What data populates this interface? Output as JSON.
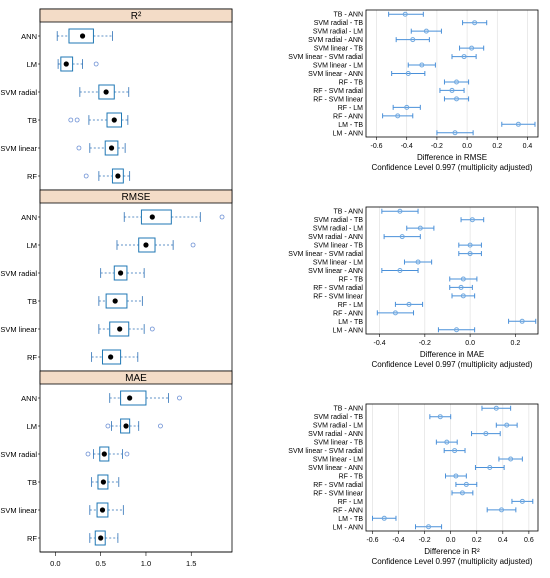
{
  "chart_data": [
    {
      "type": "box",
      "title": "R²",
      "categories": [
        "ANN",
        "LM",
        "SVM radial",
        "TB",
        "SVM linear",
        "RF"
      ],
      "boxes": [
        {
          "q1": 0.15,
          "median": 0.3,
          "q3": 0.42,
          "whisker_low": 0.02,
          "whisker_high": 0.63,
          "outliers": []
        },
        {
          "q1": 0.06,
          "median": 0.12,
          "q3": 0.19,
          "whisker_low": 0.03,
          "whisker_high": 0.3,
          "outliers": [
            0.45
          ]
        },
        {
          "q1": 0.48,
          "median": 0.56,
          "q3": 0.65,
          "whisker_low": 0.27,
          "whisker_high": 0.81,
          "outliers": []
        },
        {
          "q1": 0.57,
          "median": 0.65,
          "q3": 0.73,
          "whisker_low": 0.37,
          "whisker_high": 0.8,
          "outliers": [
            0.17,
            0.24
          ]
        },
        {
          "q1": 0.55,
          "median": 0.62,
          "q3": 0.69,
          "whisker_low": 0.38,
          "whisker_high": 0.77,
          "outliers": [
            0.26
          ]
        },
        {
          "q1": 0.63,
          "median": 0.69,
          "q3": 0.75,
          "whisker_low": 0.48,
          "whisker_high": 0.82,
          "outliers": [
            0.34
          ]
        }
      ]
    },
    {
      "type": "box",
      "title": "RMSE",
      "categories": [
        "ANN",
        "LM",
        "SVM radial",
        "TB",
        "SVM linear",
        "RF"
      ],
      "boxes": [
        {
          "q1": 0.95,
          "median": 1.07,
          "q3": 1.28,
          "whisker_low": 0.76,
          "whisker_high": 1.6,
          "outliers": [
            1.84
          ]
        },
        {
          "q1": 0.92,
          "median": 1.0,
          "q3": 1.1,
          "whisker_low": 0.68,
          "whisker_high": 1.3,
          "outliers": [
            1.52
          ]
        },
        {
          "q1": 0.65,
          "median": 0.72,
          "q3": 0.79,
          "whisker_low": 0.5,
          "whisker_high": 0.98,
          "outliers": []
        },
        {
          "q1": 0.56,
          "median": 0.66,
          "q3": 0.79,
          "whisker_low": 0.48,
          "whisker_high": 0.96,
          "outliers": []
        },
        {
          "q1": 0.6,
          "median": 0.71,
          "q3": 0.81,
          "whisker_low": 0.48,
          "whisker_high": 0.98,
          "outliers": [
            1.07
          ]
        },
        {
          "q1": 0.52,
          "median": 0.61,
          "q3": 0.72,
          "whisker_low": 0.4,
          "whisker_high": 0.91,
          "outliers": []
        }
      ]
    },
    {
      "type": "box",
      "title": "MAE",
      "categories": [
        "ANN",
        "LM",
        "SVM radial",
        "TB",
        "SVM linear",
        "RF"
      ],
      "boxes": [
        {
          "q1": 0.72,
          "median": 0.82,
          "q3": 1.0,
          "whisker_low": 0.6,
          "whisker_high": 1.25,
          "outliers": [
            1.37
          ]
        },
        {
          "q1": 0.72,
          "median": 0.78,
          "q3": 0.82,
          "whisker_low": 0.62,
          "whisker_high": 0.92,
          "outliers": [
            0.58,
            1.16
          ]
        },
        {
          "q1": 0.49,
          "median": 0.54,
          "q3": 0.59,
          "whisker_low": 0.42,
          "whisker_high": 0.74,
          "outliers": [
            0.36,
            0.79
          ]
        },
        {
          "q1": 0.47,
          "median": 0.53,
          "q3": 0.58,
          "whisker_low": 0.4,
          "whisker_high": 0.7,
          "outliers": []
        },
        {
          "q1": 0.46,
          "median": 0.52,
          "q3": 0.58,
          "whisker_low": 0.38,
          "whisker_high": 0.75,
          "outliers": []
        },
        {
          "q1": 0.44,
          "median": 0.5,
          "q3": 0.55,
          "whisker_low": 0.38,
          "whisker_high": 0.69,
          "outliers": []
        }
      ]
    },
    {
      "type": "errorbar",
      "xlabel": "Difference in RMSE",
      "subtitle": "Confidence Level 0.997  (multiplicity adjusted)",
      "xlim": [
        -0.67,
        0.47
      ],
      "xticks": [
        -0.6,
        -0.4,
        -0.2,
        0.0,
        0.2,
        0.4
      ],
      "categories": [
        "TB - ANN",
        "SVM radial - TB",
        "SVM radial - LM",
        "SVM radial - ANN",
        "SVM linear - TB",
        "SVM linear - SVM radial",
        "SVM linear - LM",
        "SVM linear - ANN",
        "RF - TB",
        "RF - SVM radial",
        "RF - SVM linear",
        "RF - LM",
        "RF - ANN",
        "LM - TB",
        "LM - ANN"
      ],
      "estimate": [
        -0.41,
        0.05,
        -0.27,
        -0.36,
        0.03,
        -0.02,
        -0.3,
        -0.39,
        -0.07,
        -0.1,
        -0.07,
        -0.4,
        -0.46,
        0.34,
        -0.08
      ],
      "lower": [
        -0.52,
        -0.03,
        -0.37,
        -0.47,
        -0.05,
        -0.1,
        -0.39,
        -0.5,
        -0.15,
        -0.18,
        -0.15,
        -0.49,
        -0.56,
        0.23,
        -0.2
      ],
      "upper": [
        -0.29,
        0.13,
        -0.17,
        -0.25,
        0.11,
        0.06,
        -0.21,
        -0.28,
        0.01,
        -0.02,
        0.01,
        -0.31,
        -0.36,
        0.45,
        0.04
      ]
    },
    {
      "type": "errorbar",
      "xlabel": "Difference in MAE",
      "subtitle": "Confidence Level 0.997  (multiplicity adjusted)",
      "xlim": [
        -0.46,
        0.3
      ],
      "xticks": [
        -0.4,
        -0.2,
        0.0,
        0.2
      ],
      "categories": [
        "TB - ANN",
        "SVM radial - TB",
        "SVM radial - LM",
        "SVM radial - ANN",
        "SVM linear - TB",
        "SVM linear - SVM radial",
        "SVM linear - LM",
        "SVM linear - ANN",
        "RF - TB",
        "RF - SVM radial",
        "RF - SVM linear",
        "RF - LM",
        "RF - ANN",
        "LM - TB",
        "LM - ANN"
      ],
      "estimate": [
        -0.31,
        0.01,
        -0.22,
        -0.3,
        0.0,
        0.0,
        -0.23,
        -0.31,
        -0.03,
        -0.04,
        -0.03,
        -0.27,
        -0.33,
        0.23,
        -0.06
      ],
      "lower": [
        -0.39,
        -0.04,
        -0.28,
        -0.38,
        -0.05,
        -0.05,
        -0.29,
        -0.39,
        -0.09,
        -0.09,
        -0.08,
        -0.33,
        -0.41,
        0.17,
        -0.14
      ],
      "upper": [
        -0.23,
        0.06,
        -0.16,
        -0.22,
        0.05,
        0.05,
        -0.17,
        -0.23,
        0.03,
        0.01,
        0.02,
        -0.21,
        -0.25,
        0.29,
        0.02
      ]
    },
    {
      "type": "errorbar",
      "xlabel": "Difference in R²",
      "subtitle": "Confidence Level 0.997  (multiplicity adjusted)",
      "xlim": [
        -0.65,
        0.67
      ],
      "xticks": [
        -0.6,
        -0.4,
        -0.2,
        0.0,
        0.2,
        0.4,
        0.6
      ],
      "categories": [
        "TB - ANN",
        "SVM radial - TB",
        "SVM radial - LM",
        "SVM radial - ANN",
        "SVM linear - TB",
        "SVM linear - SVM radial",
        "SVM linear - LM",
        "SVM linear - ANN",
        "RF - TB",
        "RF - SVM radial",
        "RF - SVM linear",
        "RF - LM",
        "RF - ANN",
        "LM - TB",
        "LM - ANN"
      ],
      "estimate": [
        0.35,
        -0.08,
        0.43,
        0.27,
        -0.03,
        0.03,
        0.46,
        0.3,
        0.04,
        0.12,
        0.09,
        0.55,
        0.39,
        -0.51,
        -0.17
      ],
      "lower": [
        0.24,
        -0.16,
        0.35,
        0.16,
        -0.11,
        -0.05,
        0.37,
        0.19,
        -0.04,
        0.04,
        0.01,
        0.47,
        0.28,
        -0.6,
        -0.27
      ],
      "upper": [
        0.46,
        0.0,
        0.51,
        0.38,
        0.05,
        0.11,
        0.55,
        0.41,
        0.12,
        0.2,
        0.17,
        0.63,
        0.5,
        -0.42,
        -0.07
      ]
    }
  ],
  "box_axis": {
    "xlim": [
      -0.17,
      1.95
    ],
    "xticks": [
      0.0,
      0.5,
      1.0,
      1.5
    ],
    "tick_labels": [
      "0.0",
      "0.5",
      "1.0",
      "1.5"
    ]
  },
  "colors": {
    "box": "#1f77b4",
    "whisker": "#2b6fb5",
    "outlier": "#6b8fd4",
    "strip": "#f3dcc7",
    "ci": "#4a90d9",
    "ci_point": "#6fa8e0",
    "grid": "#dddddd"
  }
}
